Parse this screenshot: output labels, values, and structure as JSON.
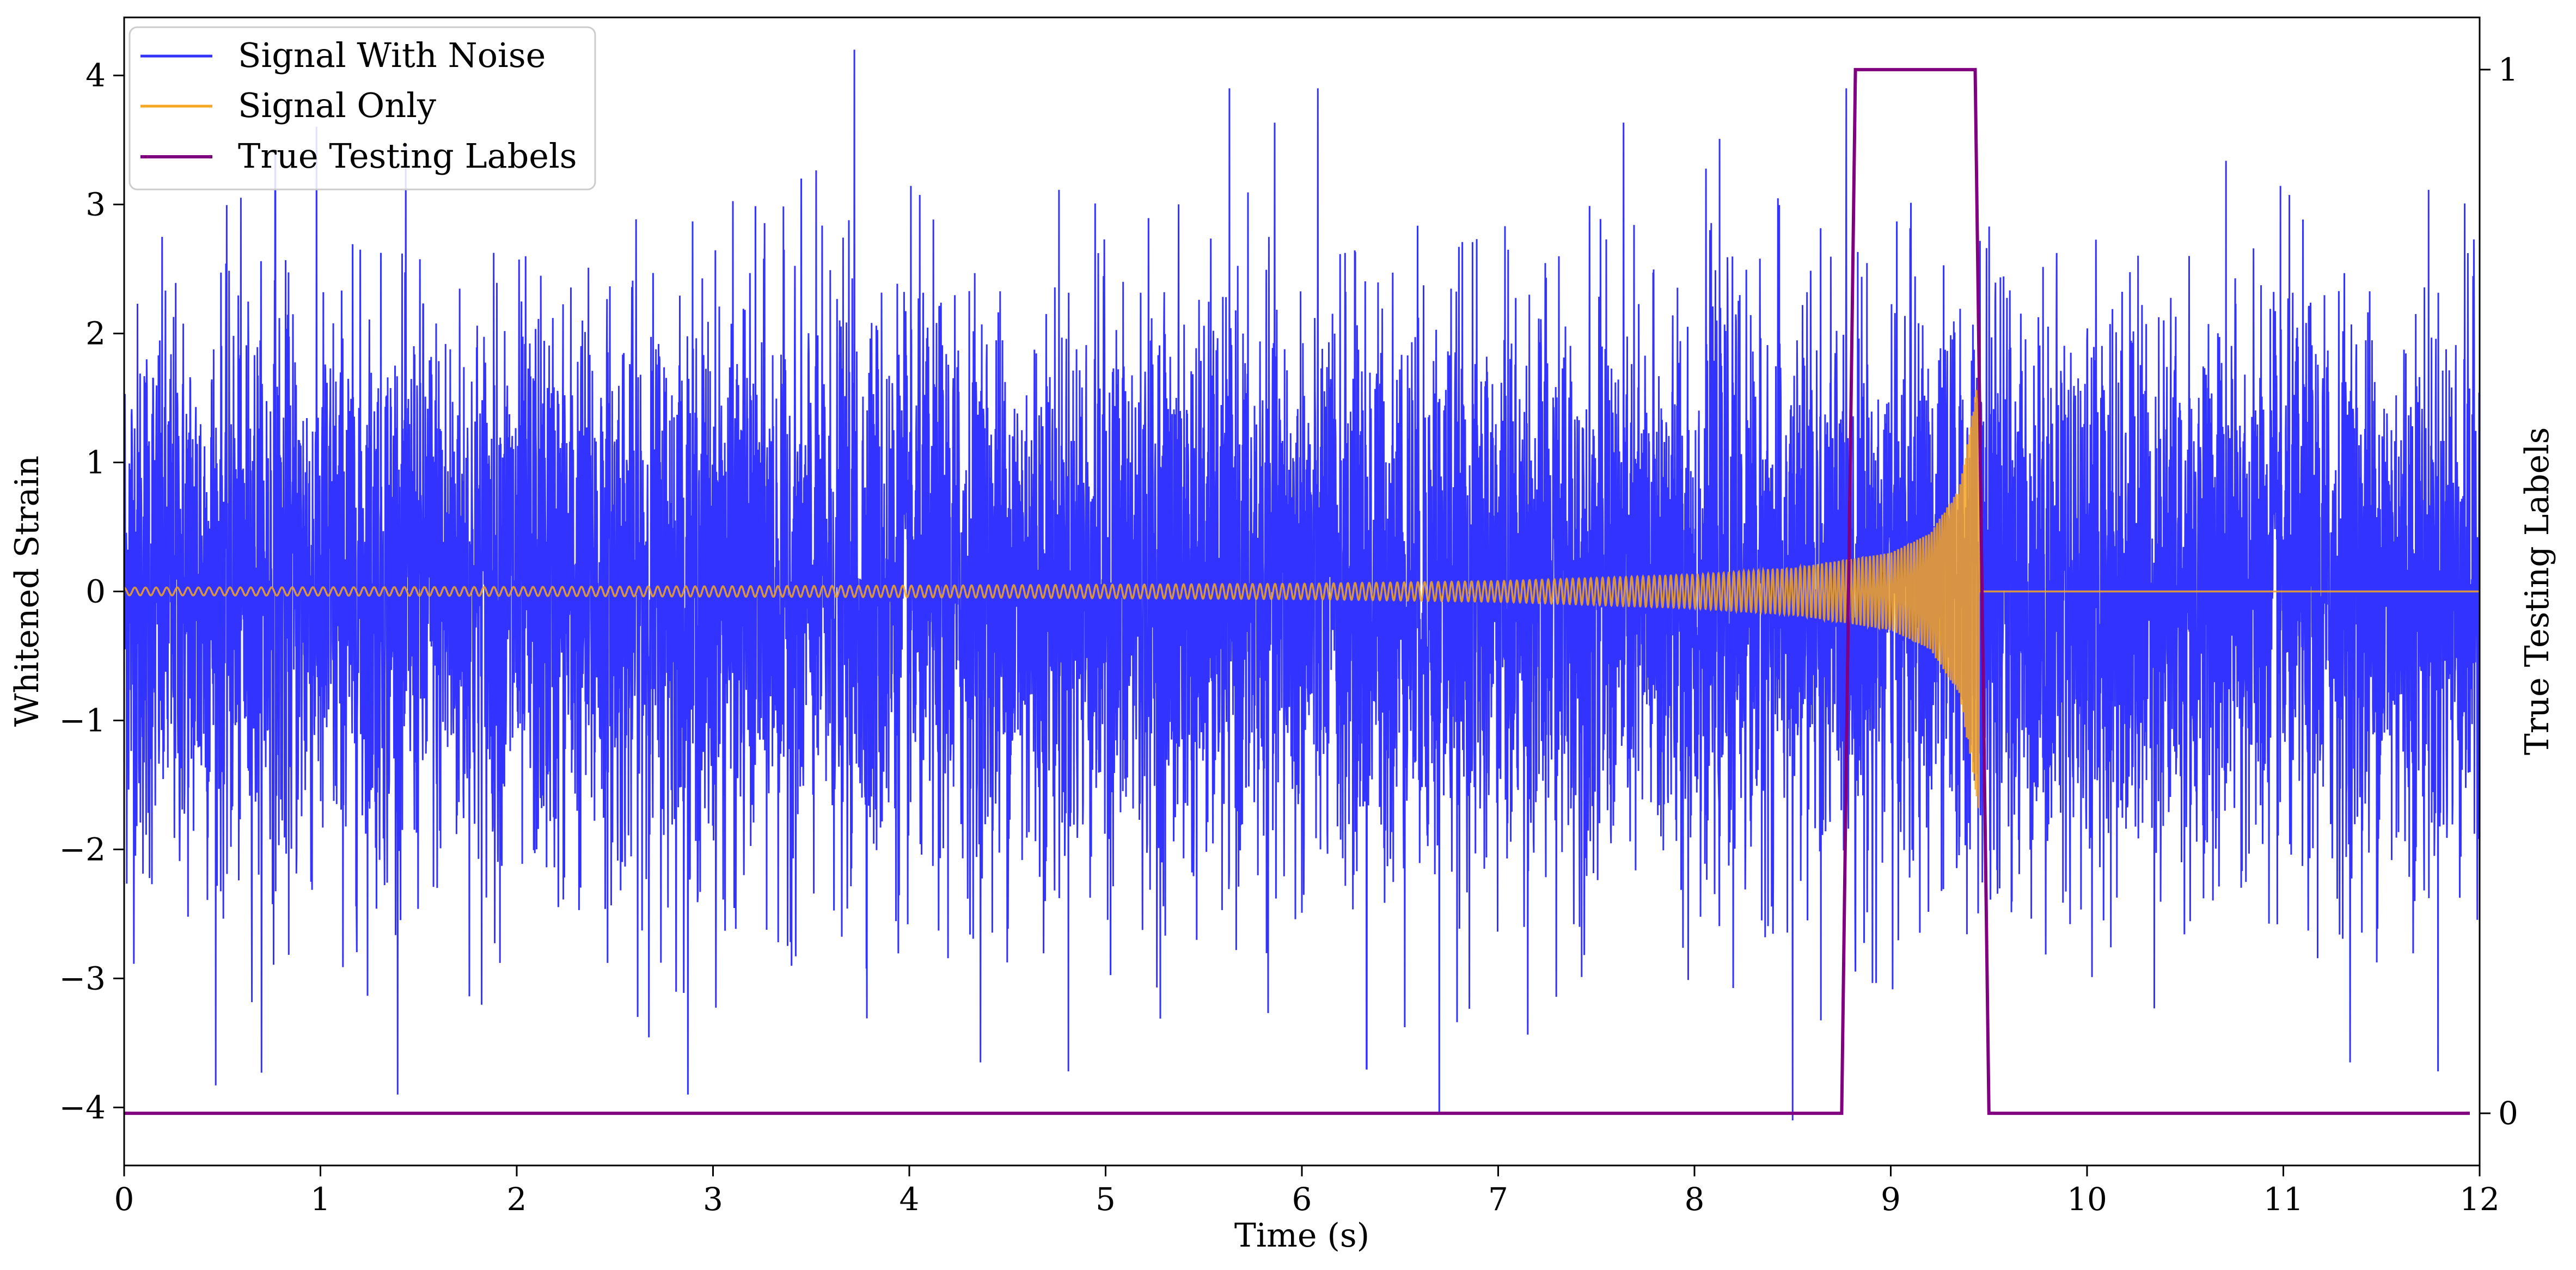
{
  "chart_data": {
    "type": "line",
    "title": "",
    "xlabel": "Time (s)",
    "ylabel": "Whitened Strain",
    "y2label": "True Testing Labels",
    "xlim": [
      0,
      12
    ],
    "ylim": [
      -4.45,
      4.45
    ],
    "y2lim": [
      -0.05,
      1.05
    ],
    "x_ticks": [
      "0",
      "1",
      "2",
      "3",
      "4",
      "5",
      "6",
      "7",
      "8",
      "9",
      "10",
      "11",
      "12"
    ],
    "y_ticks": [
      "−4",
      "−3",
      "−2",
      "−1",
      "0",
      "1",
      "2",
      "3",
      "4"
    ],
    "y2_ticks": [
      "0",
      "1"
    ],
    "grid": false,
    "legend_position": "top-left",
    "series": [
      {
        "name": "Signal With Noise",
        "color": "#3333ff",
        "axis": "left",
        "description": "white noise, std ≈ 1.1, amplitude range ≈ −4.1 to 4.2",
        "extremes": [
          {
            "x": 3.72,
            "y": 4.2
          },
          {
            "x": 0.77,
            "y": 3.4
          },
          {
            "x": 6.7,
            "y": -4.05
          },
          {
            "x": 8.5,
            "y": -4.1
          },
          {
            "x": 6.33,
            "y": -3.7
          }
        ]
      },
      {
        "name": "Signal Only",
        "color": "#f5a623",
        "axis": "left",
        "description": "chirp waveform: amplitude grows from ≈0.03 at t=0 to ≈1.7 near t=9.45, then 0",
        "envelope": {
          "t": [
            0,
            2,
            4,
            6,
            7,
            8,
            8.5,
            9.0,
            9.2,
            9.35,
            9.45
          ],
          "amp": [
            0.03,
            0.035,
            0.045,
            0.06,
            0.08,
            0.13,
            0.18,
            0.3,
            0.45,
            0.8,
            1.7
          ]
        },
        "merger_time": 9.46
      },
      {
        "name": "True Testing Labels",
        "color": "#800080",
        "axis": "right",
        "points": [
          {
            "x": 0.0,
            "y": 0
          },
          {
            "x": 8.75,
            "y": 0
          },
          {
            "x": 8.82,
            "y": 1
          },
          {
            "x": 9.43,
            "y": 1
          },
          {
            "x": 9.5,
            "y": 0
          },
          {
            "x": 11.95,
            "y": 0
          }
        ]
      }
    ]
  }
}
